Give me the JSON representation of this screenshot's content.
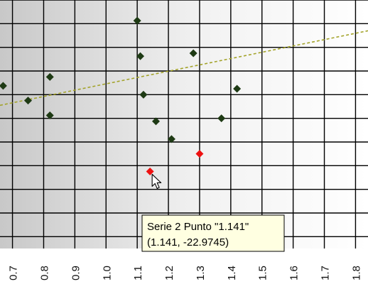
{
  "chart_data": {
    "type": "scatter",
    "title": "",
    "xlabel": "",
    "ylabel": "",
    "xlim": [
      0.66,
      1.84
    ],
    "ylim": [
      -36,
      6
    ],
    "x_ticks": [
      0.7,
      0.8,
      0.9,
      1.0,
      1.1,
      1.2,
      1.3,
      1.4,
      1.5,
      1.6,
      1.7,
      1.8
    ],
    "x_tick_labels": [
      "0.7",
      "0.8",
      "0.9",
      "1.0",
      "1.1",
      "1.2",
      "1.3",
      "1.4",
      "1.5",
      "1.6",
      "1.7",
      "1.8"
    ],
    "grid": true,
    "series": [
      {
        "color": "#1e3a14",
        "marker": "diamond",
        "x": [
          0.67,
          0.75,
          0.82,
          0.82,
          1.1,
          1.11,
          1.12,
          1.16,
          1.21,
          1.28,
          1.37,
          1.42
        ],
        "y": [
          -8.5,
          -11.0,
          -7.0,
          -13.5,
          2.5,
          -3.5,
          -10.0,
          -14.5,
          -17.5,
          -3.0,
          -14.0,
          -9.0
        ]
      },
      {
        "name": "Serie 2",
        "color": "#ee1111",
        "marker": "diamond",
        "x": [
          1.141,
          1.3
        ],
        "y": [
          -22.9745,
          -20.0
        ]
      }
    ],
    "trendline": {
      "color": "#a3a32a",
      "style": "dashed",
      "x": [
        0.66,
        1.84
      ],
      "y": [
        -11.8,
        0.8
      ]
    },
    "tooltip": {
      "line1": "Serie 2 Punto \"1.141\"",
      "line2": "(1.141, -22.9745)",
      "anchor_x": 1.141,
      "anchor_y": -22.9745
    }
  }
}
